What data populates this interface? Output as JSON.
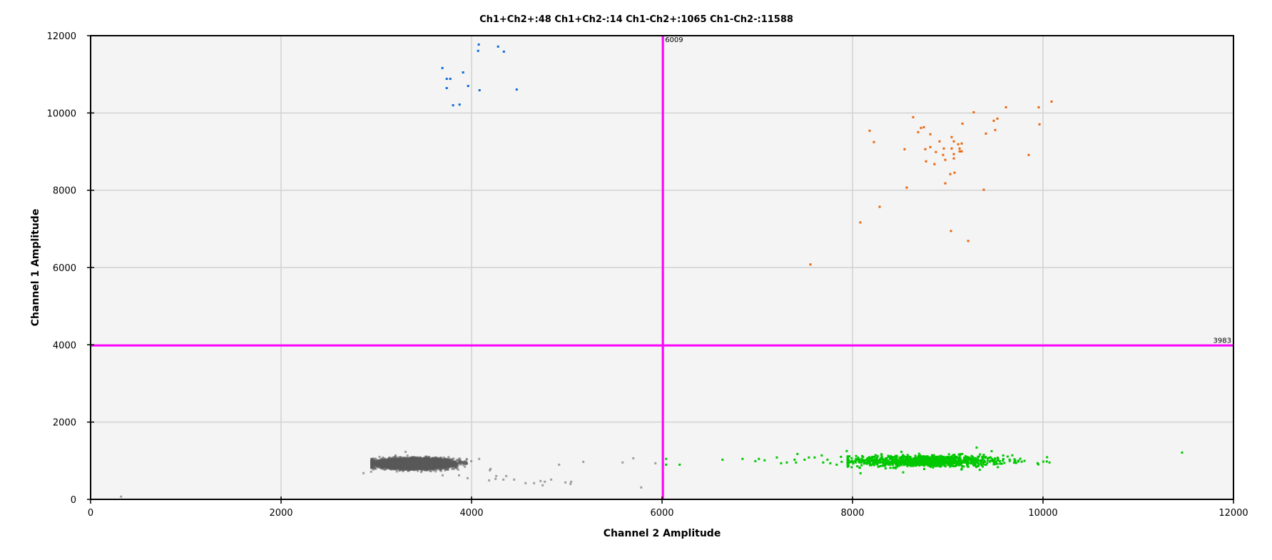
{
  "chart_data": {
    "type": "scatter",
    "title": "Ch1+Ch2+:48  Ch1+Ch2-:14  Ch1-Ch2+:1065  Ch1-Ch2-:11588",
    "xlabel": "Channel 2 Amplitude",
    "ylabel": "Channel 1 Amplitude",
    "xlim": [
      0,
      12000
    ],
    "ylim": [
      0,
      12000
    ],
    "xticks": [
      "0",
      "2000",
      "4000",
      "6000",
      "8000",
      "10000",
      "12000"
    ],
    "yticks": [
      "0",
      "2000",
      "4000",
      "6000",
      "8000",
      "10000",
      "12000"
    ],
    "grid": true,
    "background_color": "#f4f4f4",
    "thresholds": {
      "channel2": {
        "value": 6009,
        "label": "6009"
      },
      "channel1": {
        "value": 3983,
        "label": "3983"
      },
      "color": "#ff00ff"
    },
    "series": [
      {
        "name": "Ch1+Ch2-",
        "count": 14,
        "color": "#0a6ad8",
        "points": [
          [
            4076,
            11772
          ],
          [
            4069,
            11606
          ],
          [
            4279,
            11717
          ],
          [
            4339,
            11587
          ],
          [
            3694,
            11161
          ],
          [
            3911,
            11050
          ],
          [
            3739,
            10883
          ],
          [
            3777,
            10883
          ],
          [
            3739,
            10643
          ],
          [
            3964,
            10698
          ],
          [
            4084,
            10587
          ],
          [
            4474,
            10606
          ],
          [
            3806,
            10198
          ],
          [
            3874,
            10217
          ]
        ]
      },
      {
        "name": "Ch1+Ch2+",
        "count": 48,
        "color": "#e8650a",
        "points": [
          [
            10090,
            10294
          ],
          [
            9611,
            10147
          ],
          [
            9955,
            10147
          ],
          [
            9273,
            10018
          ],
          [
            8637,
            9890
          ],
          [
            9154,
            9724
          ],
          [
            9483,
            9798
          ],
          [
            9521,
            9853
          ],
          [
            9963,
            9706
          ],
          [
            8180,
            9540
          ],
          [
            8719,
            9613
          ],
          [
            8749,
            9632
          ],
          [
            8689,
            9503
          ],
          [
            8817,
            9448
          ],
          [
            9498,
            9558
          ],
          [
            9401,
            9466
          ],
          [
            8225,
            9245
          ],
          [
            9041,
            9374
          ],
          [
            8914,
            9264
          ],
          [
            9064,
            9264
          ],
          [
            9109,
            9190
          ],
          [
            9146,
            9209
          ],
          [
            8547,
            9061
          ],
          [
            8764,
            9061
          ],
          [
            8817,
            9117
          ],
          [
            8876,
            8988
          ],
          [
            8959,
            9080
          ],
          [
            9041,
            9080
          ],
          [
            9124,
            9080
          ],
          [
            9124,
            9006
          ],
          [
            9146,
            9006
          ],
          [
            8951,
            8914
          ],
          [
            9064,
            8933
          ],
          [
            8974,
            8785
          ],
          [
            9064,
            8822
          ],
          [
            8772,
            8748
          ],
          [
            8861,
            8675
          ],
          [
            9850,
            8914
          ],
          [
            9026,
            8417
          ],
          [
            9071,
            8454
          ],
          [
            8974,
            8178
          ],
          [
            8569,
            8068
          ],
          [
            9378,
            8012
          ],
          [
            8285,
            7571
          ],
          [
            8082,
            7166
          ],
          [
            9034,
            6945
          ],
          [
            9214,
            6687
          ],
          [
            7558,
            6080
          ]
        ]
      },
      {
        "name": "Ch1-Ch2+",
        "count": 1065,
        "color": "#00c800",
        "points": [
          [
            6043,
            1046
          ],
          [
            6043,
            898
          ],
          [
            6185,
            898
          ],
          [
            6635,
            1027
          ],
          [
            6845,
            1046
          ],
          [
            6980,
            990
          ],
          [
            7017,
            1046
          ],
          [
            7077,
            1009
          ],
          [
            7205,
            1083
          ],
          [
            7250,
            935
          ],
          [
            7310,
            954
          ],
          [
            7392,
            1027
          ],
          [
            7422,
            1175
          ],
          [
            7407,
            954
          ],
          [
            7497,
            1027
          ],
          [
            7542,
            1083
          ],
          [
            7602,
            1083
          ],
          [
            7677,
            1138
          ],
          [
            7692,
            954
          ],
          [
            7737,
            1027
          ],
          [
            7767,
            935
          ],
          [
            7834,
            898
          ],
          [
            7879,
            1101
          ],
          [
            7939,
            1249
          ],
          [
            7886,
            972
          ],
          [
            9303,
            1341
          ],
          [
            8514,
            1230
          ],
          [
            10068,
            954
          ],
          [
            11461,
            1212
          ]
        ],
        "cluster": {
          "center": [
            8750,
            990
          ],
          "spread": [
            430,
            75
          ],
          "x_range": [
            7950,
            10050
          ]
        }
      },
      {
        "name": "Ch1-Ch2-",
        "count": 11588,
        "color": "#5a5a5a",
        "points": [
          [
            320,
            70
          ],
          [
            2865,
            677
          ],
          [
            2945,
            714
          ],
          [
            3997,
            990
          ],
          [
            4080,
            1046
          ],
          [
            4199,
            788
          ],
          [
            4192,
            751
          ],
          [
            4259,
            603
          ],
          [
            4184,
            492
          ],
          [
            4252,
            529
          ],
          [
            4334,
            511
          ],
          [
            4364,
            603
          ],
          [
            4447,
            511
          ],
          [
            4567,
            419
          ],
          [
            4656,
            419
          ],
          [
            4724,
            474
          ],
          [
            4769,
            456
          ],
          [
            4746,
            363
          ],
          [
            4836,
            511
          ],
          [
            4919,
            898
          ],
          [
            4986,
            437
          ],
          [
            5046,
            456
          ],
          [
            5039,
            400
          ],
          [
            5173,
            972
          ],
          [
            5586,
            954
          ],
          [
            5698,
            1064
          ],
          [
            5781,
            308
          ],
          [
            5930,
            935
          ],
          [
            3959,
            548
          ],
          [
            3869,
            622
          ],
          [
            3307,
            1230
          ],
          [
            3697,
            622
          ]
        ],
        "cluster": {
          "center": [
            3400,
            925
          ],
          "spread": [
            170,
            55
          ],
          "x_range": [
            2950,
            3950
          ]
        }
      }
    ]
  }
}
